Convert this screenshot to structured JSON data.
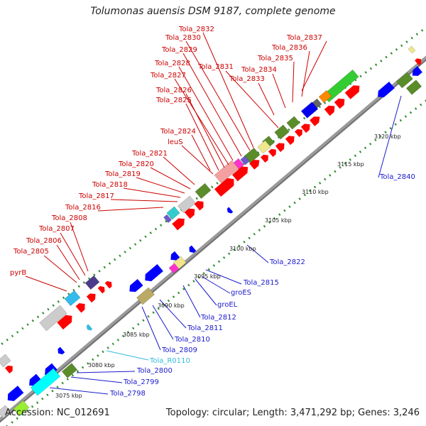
{
  "title": "Tolumonas auensis DSM 9187, complete genome",
  "footer": {
    "accession": "Accession: NC_012691",
    "summary": "Topology: circular; Length: 3,471,292 bp; Genes: 3,246"
  },
  "colors": {
    "forward_label": "#cc0000",
    "reverse_label": "#1a1acc",
    "rna_label": "#33bbdd",
    "forward_cds": "#ff0000",
    "reverse_cds": "#0000ff",
    "backbone": "#888888",
    "dots": "#2e8b2e"
  },
  "kbp_ticks": [
    "3075 kbp",
    "3080 kbp",
    "3085 kbp",
    "3090 kbp",
    "3095 kbp",
    "3100 kbp",
    "3105 kbp",
    "3110 kbp",
    "3115 kbp",
    "3120 kbp"
  ],
  "forward_labels": [
    "Tola_2832",
    "Tola_2830",
    "Tola_2829",
    "Tola_2828",
    "Tola_2827",
    "Tola_2826",
    "Tola_2825",
    "Tola_2824",
    "leuS",
    "Tola_2821",
    "Tola_2820",
    "Tola_2819",
    "Tola_2818",
    "Tola_2817",
    "Tola_2816",
    "Tola_2808",
    "Tola_2807",
    "Tola_2806",
    "Tola_2805",
    "pyrB",
    "Tola_2831",
    "Tola_2837",
    "Tola_2836",
    "Tola_2835",
    "Tola_2834",
    "Tola_2833"
  ],
  "reverse_labels": [
    "Tola_2840",
    "Tola_2822",
    "Tola_2815",
    "groES",
    "groEL",
    "Tola_2812",
    "Tola_2811",
    "Tola_2810",
    "Tola_2809",
    "Tola_2800",
    "Tola_2799",
    "Tola_2798"
  ],
  "rna_labels": [
    "Tola_R0110"
  ]
}
